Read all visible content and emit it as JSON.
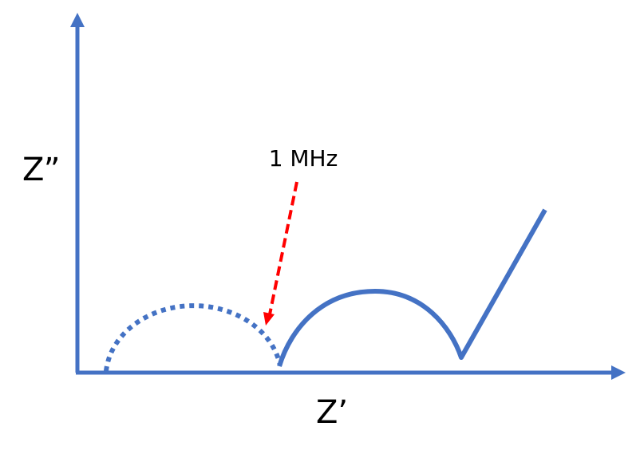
{
  "axes": {
    "y_label": "Z”",
    "x_label": "Z’"
  },
  "annotation": {
    "text": "1 MHz"
  }
}
